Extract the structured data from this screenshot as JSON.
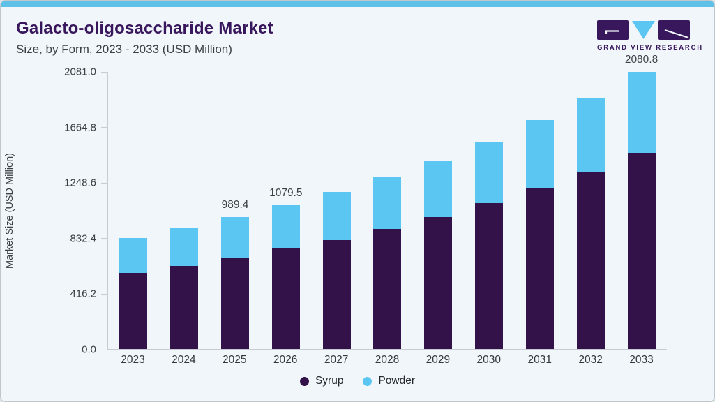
{
  "header": {
    "title": "Galacto-oligosaccharide Market",
    "subtitle": "Size, by Form, 2023 - 2033 (USD Million)"
  },
  "logo": {
    "text": "GRAND VIEW RESEARCH"
  },
  "colors": {
    "accent_bar": "#5fc0e8",
    "title_purple": "#38175c",
    "syrup": "#331249",
    "powder": "#5bc6f1",
    "background": "#f1f6fa",
    "axis_line": "#c6ccd2",
    "text_dark": "#3b4046"
  },
  "chart_data": {
    "type": "bar",
    "stacked": true,
    "ylabel": "Market Size (USD Million)",
    "xlabel": "",
    "ylim": [
      0,
      2081
    ],
    "grid": false,
    "legend_position": "bottom",
    "categories": [
      "2023",
      "2024",
      "2025",
      "2026",
      "2027",
      "2028",
      "2029",
      "2030",
      "2031",
      "2032",
      "2033"
    ],
    "series": [
      {
        "name": "Syrup",
        "color_key": "syrup",
        "values": [
          573,
          625,
          681,
          753,
          820,
          903,
          991,
          1095,
          1205,
          1328,
          1471
        ]
      },
      {
        "name": "Powder",
        "color_key": "powder",
        "values": [
          260,
          283,
          308.4,
          326.5,
          357,
          388,
          425,
          462,
          513,
          555,
          609.8
        ]
      }
    ],
    "annotations": [
      {
        "category": "2025",
        "text": "989.4"
      },
      {
        "category": "2026",
        "text": "1079.5"
      },
      {
        "category": "2033",
        "text": "2080.8"
      }
    ],
    "y_ticks_bottom_to_top": [
      "0.0",
      "416.2",
      "832.4",
      "1248.6",
      "1664.8",
      "2081.0"
    ]
  }
}
